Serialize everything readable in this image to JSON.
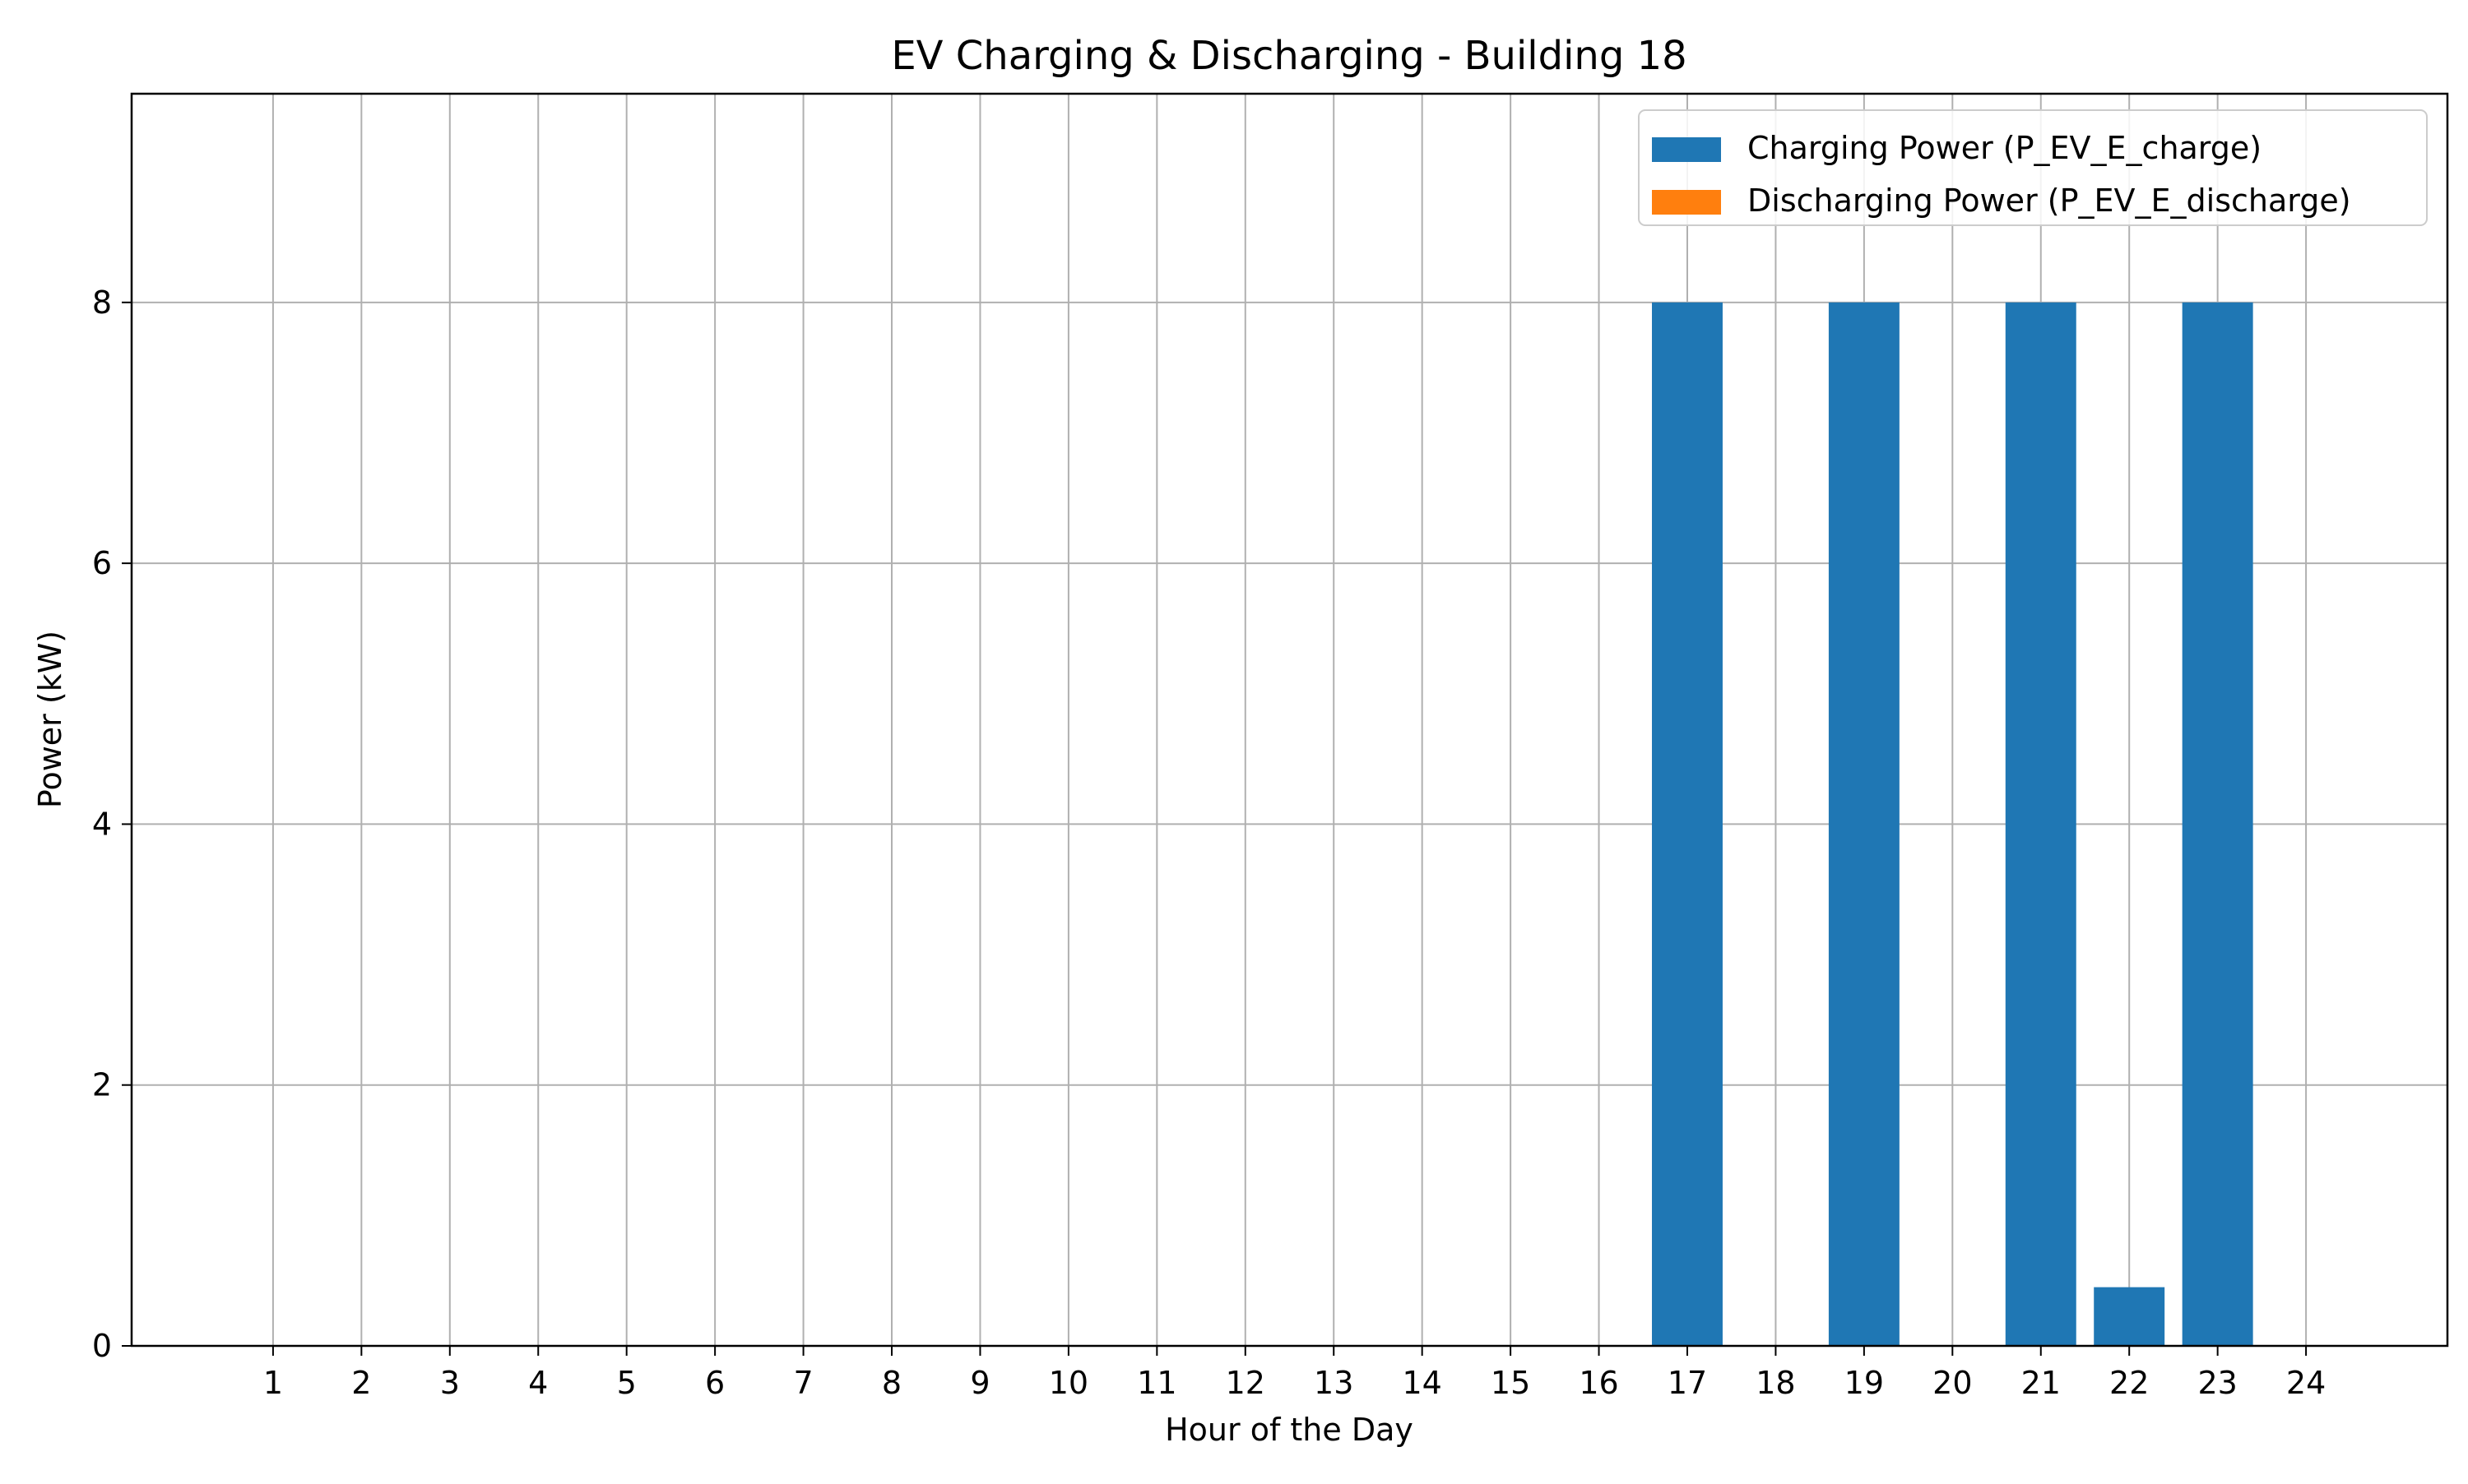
{
  "chart_data": {
    "type": "bar",
    "title": "EV Charging & Discharging - Building 18",
    "xlabel": "Hour of the Day",
    "ylabel": "Power (kW)",
    "categories": [
      "1",
      "2",
      "3",
      "4",
      "5",
      "6",
      "7",
      "8",
      "9",
      "10",
      "11",
      "12",
      "13",
      "14",
      "15",
      "16",
      "17",
      "18",
      "19",
      "20",
      "21",
      "22",
      "23",
      "24"
    ],
    "series": [
      {
        "name": "Charging Power (P_EV_E_charge)",
        "color": "#1f77b4",
        "values": [
          0,
          0,
          0,
          0,
          0,
          0,
          0,
          0,
          0,
          0,
          0,
          0,
          0,
          0,
          0,
          0,
          8,
          0,
          8,
          0,
          8,
          0.45,
          8,
          0
        ]
      },
      {
        "name": "Discharging Power (P_EV_E_discharge)",
        "color": "#ff7f0e",
        "values": [
          0,
          0,
          0,
          0,
          0,
          0,
          0,
          0,
          0,
          0,
          0,
          0,
          0,
          0,
          0,
          0,
          0,
          0,
          0,
          0,
          0,
          0,
          0,
          0
        ]
      }
    ],
    "ylim": [
      0,
      9.6
    ],
    "xlim": [
      -0.6,
      25.6
    ],
    "yticks": [
      0,
      2,
      4,
      6,
      8
    ],
    "grid": true,
    "legend_position": "top-right"
  }
}
